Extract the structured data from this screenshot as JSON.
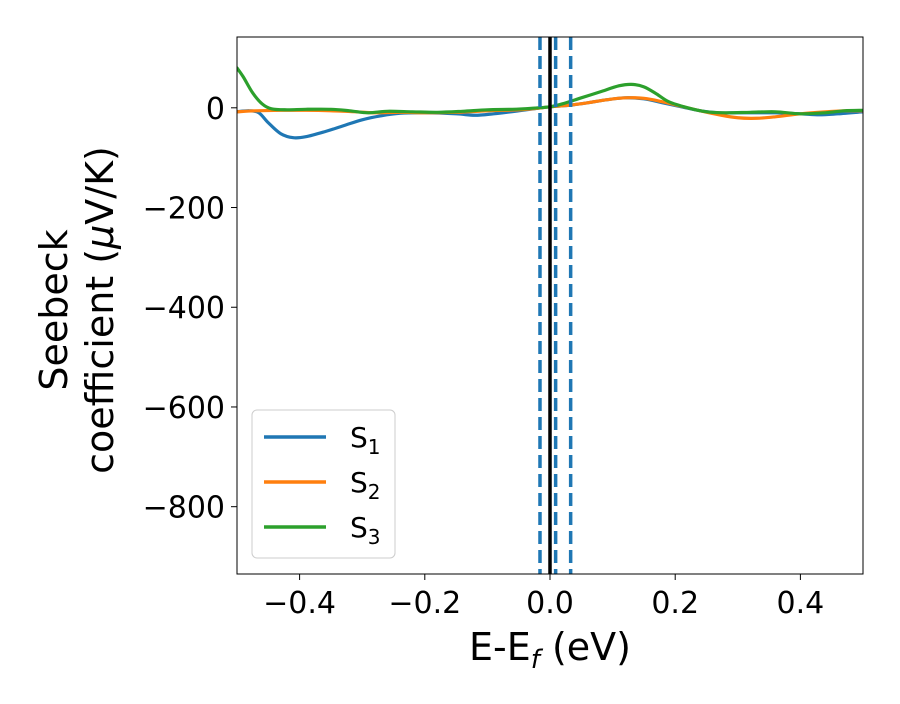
{
  "chart_data": {
    "type": "line",
    "xlabel": "E-E",
    "xlabel_sub": "f",
    "xlabel_unit": " (eV)",
    "ylabel_line1": "Seebeck",
    "ylabel_line2_pre": "coefficient  (",
    "ylabel_line2_mu": "μ",
    "ylabel_line2_post": "V/K)",
    "xlim": [
      -0.5,
      0.5
    ],
    "ylim": [
      -935,
      142
    ],
    "x_ticks": [
      -0.4,
      -0.2,
      0.0,
      0.2,
      0.4
    ],
    "x_tick_labels": [
      "−0.4",
      "−0.2",
      "0.0",
      "0.2",
      "0.4"
    ],
    "y_ticks": [
      0,
      -200,
      -400,
      -600,
      -800
    ],
    "y_tick_labels": [
      "0",
      "−200",
      "−400",
      "−600",
      "−800"
    ],
    "legend_position": "lower-left",
    "vlines": [
      {
        "x": 0.0,
        "style": "solid",
        "color": "#000000"
      },
      {
        "x": -0.016,
        "style": "dashed",
        "color": "#1f77b4"
      },
      {
        "x": 0.009,
        "style": "dashed",
        "color": "#1f77b4"
      },
      {
        "x": 0.033,
        "style": "dashed",
        "color": "#1f77b4"
      }
    ],
    "series": [
      {
        "name": "S",
        "sub": "1",
        "color": "#1f77b4",
        "points": [
          [
            -0.5,
            -8
          ],
          [
            -0.48,
            -6
          ],
          [
            -0.465,
            -10
          ],
          [
            -0.45,
            -30
          ],
          [
            -0.43,
            -52
          ],
          [
            -0.41,
            -60
          ],
          [
            -0.39,
            -58
          ],
          [
            -0.36,
            -48
          ],
          [
            -0.33,
            -36
          ],
          [
            -0.3,
            -24
          ],
          [
            -0.27,
            -16
          ],
          [
            -0.24,
            -11
          ],
          [
            -0.2,
            -10
          ],
          [
            -0.15,
            -12
          ],
          [
            -0.12,
            -15
          ],
          [
            -0.09,
            -12
          ],
          [
            -0.05,
            -6
          ],
          [
            -0.02,
            -1
          ],
          [
            0.0,
            2
          ],
          [
            0.03,
            5
          ],
          [
            0.06,
            10
          ],
          [
            0.09,
            16
          ],
          [
            0.12,
            20
          ],
          [
            0.15,
            18
          ],
          [
            0.18,
            10
          ],
          [
            0.21,
            2
          ],
          [
            0.24,
            -6
          ],
          [
            0.27,
            -10
          ],
          [
            0.3,
            -10
          ],
          [
            0.33,
            -10
          ],
          [
            0.36,
            -10
          ],
          [
            0.4,
            -12
          ],
          [
            0.43,
            -14
          ],
          [
            0.46,
            -12
          ],
          [
            0.5,
            -8
          ]
        ]
      },
      {
        "name": "S",
        "sub": "2",
        "color": "#ff7f0e",
        "points": [
          [
            -0.5,
            -8
          ],
          [
            -0.47,
            -6
          ],
          [
            -0.43,
            -5
          ],
          [
            -0.39,
            -5
          ],
          [
            -0.35,
            -6
          ],
          [
            -0.31,
            -8
          ],
          [
            -0.28,
            -10
          ],
          [
            -0.24,
            -9
          ],
          [
            -0.2,
            -10
          ],
          [
            -0.15,
            -9
          ],
          [
            -0.1,
            -6
          ],
          [
            -0.05,
            -4
          ],
          [
            -0.02,
            -1
          ],
          [
            0.0,
            2
          ],
          [
            0.03,
            5
          ],
          [
            0.06,
            10
          ],
          [
            0.09,
            16
          ],
          [
            0.12,
            20
          ],
          [
            0.15,
            19
          ],
          [
            0.18,
            12
          ],
          [
            0.21,
            3
          ],
          [
            0.24,
            -6
          ],
          [
            0.27,
            -14
          ],
          [
            0.3,
            -20
          ],
          [
            0.33,
            -21
          ],
          [
            0.36,
            -18
          ],
          [
            0.4,
            -12
          ],
          [
            0.44,
            -8
          ],
          [
            0.47,
            -6
          ],
          [
            0.5,
            -6
          ]
        ]
      },
      {
        "name": "S",
        "sub": "3",
        "color": "#2ca02c",
        "points": [
          [
            -0.5,
            80
          ],
          [
            -0.49,
            62
          ],
          [
            -0.475,
            30
          ],
          [
            -0.46,
            8
          ],
          [
            -0.445,
            -2
          ],
          [
            -0.42,
            -4
          ],
          [
            -0.39,
            -3
          ],
          [
            -0.35,
            -3
          ],
          [
            -0.32,
            -6
          ],
          [
            -0.29,
            -10
          ],
          [
            -0.26,
            -7
          ],
          [
            -0.22,
            -8
          ],
          [
            -0.18,
            -9
          ],
          [
            -0.14,
            -7
          ],
          [
            -0.1,
            -4
          ],
          [
            -0.06,
            -3
          ],
          [
            -0.03,
            -1
          ],
          [
            0.0,
            2
          ],
          [
            0.02,
            8
          ],
          [
            0.05,
            20
          ],
          [
            0.08,
            32
          ],
          [
            0.11,
            44
          ],
          [
            0.13,
            47
          ],
          [
            0.15,
            42
          ],
          [
            0.17,
            28
          ],
          [
            0.19,
            12
          ],
          [
            0.22,
            0
          ],
          [
            0.25,
            -8
          ],
          [
            0.28,
            -10
          ],
          [
            0.32,
            -9
          ],
          [
            0.36,
            -8
          ],
          [
            0.4,
            -12
          ],
          [
            0.44,
            -10
          ],
          [
            0.47,
            -6
          ],
          [
            0.5,
            -5
          ]
        ]
      }
    ]
  }
}
